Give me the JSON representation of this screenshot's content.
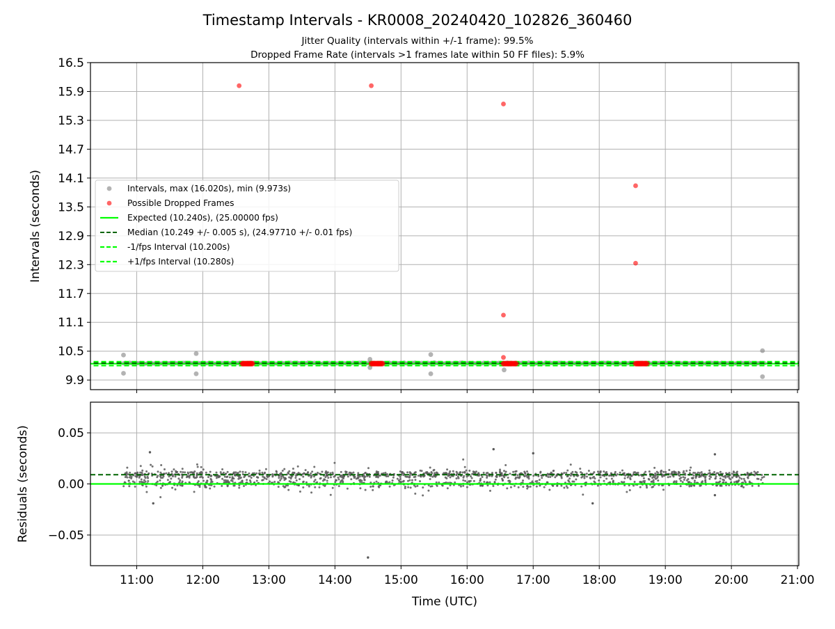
{
  "chart_data": {
    "type": "scatter",
    "title": "Timestamp Intervals - KR0008_20240420_102826_360460",
    "subtitle_lines": [
      "Jitter Quality (intervals within +/-1 frame): 99.5%",
      "Dropped Frame Rate (intervals >1 frames late within 50 FF files): 5.9%"
    ],
    "colors": {
      "intervals": "#808080",
      "dropped": "#ff0000",
      "expected": "#00ff00",
      "median": "#006400",
      "fps_band": "#00ff00",
      "grid": "#b0b0b0"
    },
    "x_axis": {
      "label": "Time (UTC)",
      "range_hours": [
        10.3,
        21.02
      ],
      "ticks": [
        {
          "value": 11,
          "label": "11:00"
        },
        {
          "value": 12,
          "label": "12:00"
        },
        {
          "value": 13,
          "label": "13:00"
        },
        {
          "value": 14,
          "label": "14:00"
        },
        {
          "value": 15,
          "label": "15:00"
        },
        {
          "value": 16,
          "label": "16:00"
        },
        {
          "value": 17,
          "label": "17:00"
        },
        {
          "value": 18,
          "label": "18:00"
        },
        {
          "value": 19,
          "label": "19:00"
        },
        {
          "value": 20,
          "label": "20:00"
        },
        {
          "value": 21,
          "label": "21:00"
        }
      ]
    },
    "top_panel": {
      "ylabel": "Intervals (seconds)",
      "ylim": [
        9.7,
        16.5
      ],
      "yticks": [
        {
          "value": 9.9,
          "label": "9.9"
        },
        {
          "value": 10.5,
          "label": "10.5"
        },
        {
          "value": 11.1,
          "label": "11.1"
        },
        {
          "value": 11.7,
          "label": "11.7"
        },
        {
          "value": 12.3,
          "label": "12.3"
        },
        {
          "value": 12.9,
          "label": "12.9"
        },
        {
          "value": 13.5,
          "label": "13.5"
        },
        {
          "value": 14.1,
          "label": "14.1"
        },
        {
          "value": 14.7,
          "label": "14.7"
        },
        {
          "value": 15.3,
          "label": "15.3"
        },
        {
          "value": 15.9,
          "label": "15.9"
        },
        {
          "value": 16.5,
          "label": "16.5"
        }
      ],
      "expected": 10.24,
      "median": 10.249,
      "minus_fps": 10.2,
      "plus_fps": 10.28,
      "legend": [
        {
          "label": "Intervals, max (16.020s), min (9.973s)",
          "kind": "dot-gray"
        },
        {
          "label": "Possible Dropped Frames",
          "kind": "dot-red"
        },
        {
          "label": "Expected (10.240s), (25.00000 fps)",
          "kind": "line-expected"
        },
        {
          "label": "Median (10.249 +/- 0.005 s), (24.97710 +/- 0.01 fps)",
          "kind": "line-median"
        },
        {
          "label": "-1/fps Interval (10.200s)",
          "kind": "line-fps"
        },
        {
          "label": "+1/fps Interval (10.280s)",
          "kind": "line-fps"
        }
      ],
      "legend_position": "center-left",
      "gray_outliers": [
        {
          "x": 10.8,
          "y": 10.42
        },
        {
          "x": 10.8,
          "y": 10.04
        },
        {
          "x": 11.9,
          "y": 10.45
        },
        {
          "x": 11.9,
          "y": 10.03
        },
        {
          "x": 14.53,
          "y": 10.33
        },
        {
          "x": 14.53,
          "y": 10.16
        },
        {
          "x": 15.45,
          "y": 10.43
        },
        {
          "x": 15.45,
          "y": 10.03
        },
        {
          "x": 16.56,
          "y": 10.11
        },
        {
          "x": 20.47,
          "y": 10.51
        },
        {
          "x": 20.47,
          "y": 9.97
        }
      ],
      "dropped_points": [
        {
          "x": 12.55,
          "y": 16.02
        },
        {
          "x": 14.55,
          "y": 16.02
        },
        {
          "x": 16.55,
          "y": 15.64
        },
        {
          "x": 18.55,
          "y": 13.94
        },
        {
          "x": 18.55,
          "y": 12.33
        },
        {
          "x": 16.55,
          "y": 11.25
        },
        {
          "x": 16.55,
          "y": 10.37
        }
      ],
      "dropped_clusters": [
        {
          "x_start": 12.6,
          "x_end": 12.75,
          "y": 10.24
        },
        {
          "x_start": 14.55,
          "x_end": 14.72,
          "y": 10.24
        },
        {
          "x_start": 16.55,
          "x_end": 16.74,
          "y": 10.24
        },
        {
          "x_start": 18.55,
          "x_end": 18.72,
          "y": 10.24
        }
      ],
      "data_span_hours": [
        10.8,
        20.5
      ]
    },
    "bottom_panel": {
      "ylabel": "Residuals (seconds)",
      "ylim": [
        -0.08,
        0.08
      ],
      "yticks": [
        {
          "value": 0.05,
          "label": "0.05"
        },
        {
          "value": 0.0,
          "label": "0.00"
        },
        {
          "value": -0.05,
          "label": "−0.05"
        }
      ],
      "zero_line": 0.0,
      "median_residual": 0.009,
      "outliers": [
        {
          "x": 14.5,
          "y": -0.072
        },
        {
          "x": 16.4,
          "y": 0.034
        },
        {
          "x": 11.2,
          "y": 0.031
        },
        {
          "x": 11.25,
          "y": -0.019
        },
        {
          "x": 17.0,
          "y": 0.03
        },
        {
          "x": 17.9,
          "y": -0.019
        },
        {
          "x": 19.75,
          "y": 0.029
        },
        {
          "x": 19.75,
          "y": -0.011
        }
      ],
      "data_span_hours": [
        10.8,
        20.5
      ]
    },
    "grid": true
  }
}
